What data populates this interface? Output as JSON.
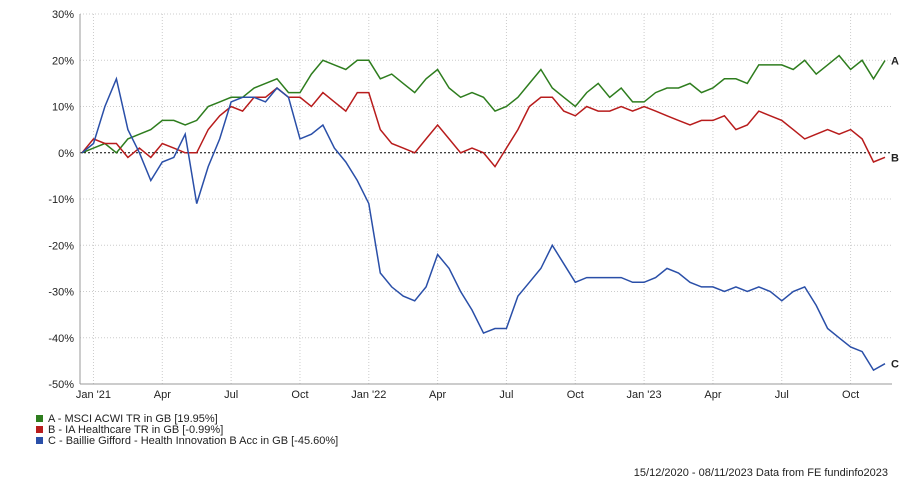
{
  "chart_data": {
    "type": "line",
    "categories": [
      null,
      "Jan '21",
      null,
      null,
      null,
      null,
      null,
      "Apr",
      null,
      null,
      null,
      null,
      null,
      "Jul",
      null,
      null,
      null,
      null,
      null,
      "Oct",
      null,
      null,
      null,
      null,
      null,
      "Jan '22",
      null,
      null,
      null,
      null,
      null,
      "Apr",
      null,
      null,
      null,
      null,
      null,
      "Jul",
      null,
      null,
      null,
      null,
      null,
      "Oct",
      null,
      null,
      null,
      null,
      null,
      "Jan '23",
      null,
      null,
      null,
      null,
      null,
      "Apr",
      null,
      null,
      null,
      null,
      null,
      "Jul",
      null,
      null,
      null,
      null,
      null,
      "Oct",
      null,
      null,
      null
    ],
    "series": [
      {
        "name": "A - MSCI ACWI TR in GB [19.95%]",
        "label": "A",
        "color": "#2e7d1e",
        "values": [
          0,
          1,
          2,
          0,
          3,
          4,
          5,
          7,
          7,
          6,
          7,
          10,
          11,
          12,
          12,
          14,
          15,
          16,
          13,
          13,
          17,
          20,
          19,
          18,
          20,
          20,
          16,
          17,
          15,
          13,
          16,
          18,
          14,
          12,
          13,
          12,
          9,
          10,
          12,
          15,
          18,
          14,
          12,
          10,
          13,
          15,
          12,
          14,
          11,
          11,
          13,
          14,
          14,
          15,
          13,
          14,
          16,
          16,
          15,
          19,
          19,
          19,
          18,
          20,
          17,
          19,
          21,
          18,
          20,
          16,
          19.95
        ]
      },
      {
        "name": "B - IA Healthcare TR in GB [-0.99%]",
        "label": "B",
        "color": "#b81c1c",
        "values": [
          0,
          3,
          2,
          2,
          -1,
          1,
          -1,
          2,
          1,
          0,
          0,
          5,
          8,
          10,
          9,
          12,
          12,
          14,
          12,
          12,
          10,
          13,
          11,
          9,
          13,
          13,
          5,
          2,
          1,
          0,
          3,
          6,
          3,
          0,
          1,
          0,
          -3,
          1,
          5,
          10,
          12,
          12,
          9,
          8,
          10,
          9,
          9,
          10,
          9,
          10,
          9,
          8,
          7,
          6,
          7,
          7,
          8,
          5,
          6,
          9,
          8,
          7,
          5,
          3,
          4,
          5,
          4,
          5,
          3,
          -2,
          -0.99
        ]
      },
      {
        "name": "C - Baillie Gifford - Health Innovation B Acc in GB [-45.60%]",
        "label": "C",
        "color": "#2a4fa8",
        "values": [
          0,
          2,
          10,
          16,
          5,
          0,
          -6,
          -2,
          -1,
          4,
          -11,
          -3,
          3,
          11,
          12,
          12,
          11,
          14,
          12,
          3,
          4,
          6,
          1,
          -2,
          -6,
          -11,
          -26,
          -29,
          -31,
          -32,
          -29,
          -22,
          -25,
          -30,
          -34,
          -39,
          -38,
          -38,
          -31,
          -28,
          -25,
          -20,
          -24,
          -28,
          -27,
          -27,
          -27,
          -27,
          -28,
          -28,
          -27,
          -25,
          -26,
          -28,
          -29,
          -29,
          -30,
          -29,
          -30,
          -29,
          -30,
          -32,
          -30,
          -29,
          -33,
          -38,
          -40,
          -42,
          -43,
          -47,
          -45.6
        ]
      }
    ],
    "ylim": [
      -50,
      30
    ],
    "yticks": [
      {
        "value": -50,
        "label": "-50%"
      },
      {
        "value": -40,
        "label": "-40%"
      },
      {
        "value": -30,
        "label": "-30%"
      },
      {
        "value": -20,
        "label": "-20%"
      },
      {
        "value": -10,
        "label": "-10%"
      },
      {
        "value": 0,
        "label": "0%"
      },
      {
        "value": 10,
        "label": "10%"
      },
      {
        "value": 20,
        "label": "20%"
      },
      {
        "value": 30,
        "label": "30%"
      }
    ],
    "grid": true,
    "footer": "15/12/2020 - 08/11/2023 Data from FE fundinfo2023"
  }
}
